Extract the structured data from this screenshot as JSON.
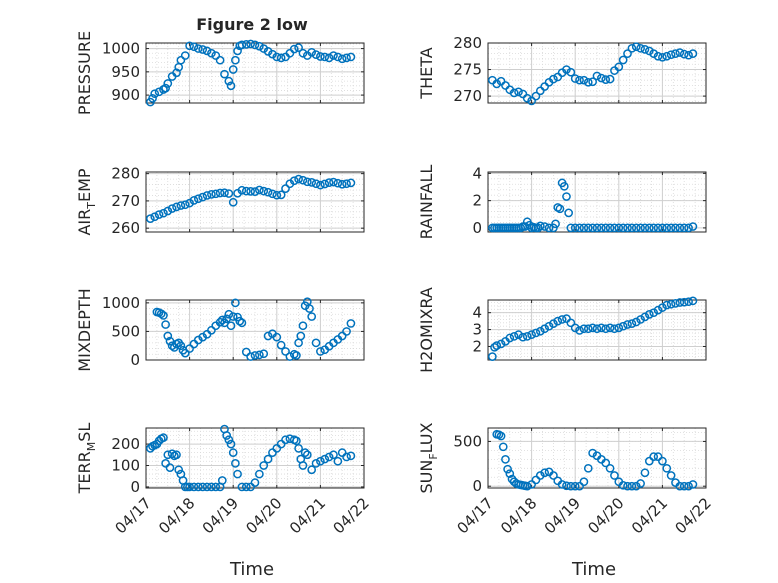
{
  "figure": {
    "title": "Figure 2 low"
  },
  "style": {
    "marker_color": "#0072BD",
    "grid_color": "#d9d9d9",
    "axis_color": "#262626"
  },
  "chart_data": [
    {
      "type": "scatter",
      "id": "pressure",
      "title": "Figure 2 low",
      "ylabel": "PRESSURE",
      "xlabel": "",
      "ylim": [
        883,
        1012
      ],
      "yticks": [
        900,
        950,
        1000
      ],
      "ytick_labels": [
        "900",
        "950",
        "1000"
      ],
      "xlim": [
        0,
        5
      ],
      "grid": true,
      "x": [
        0.1,
        0.15,
        0.2,
        0.3,
        0.4,
        0.45,
        0.5,
        0.6,
        0.7,
        0.75,
        0.8,
        0.9,
        1.0,
        1.1,
        1.2,
        1.3,
        1.4,
        1.5,
        1.6,
        1.7,
        1.8,
        1.9,
        1.95,
        2.0,
        2.05,
        2.1,
        2.15,
        2.2,
        2.3,
        2.4,
        2.5,
        2.6,
        2.7,
        2.8,
        2.9,
        3.0,
        3.1,
        3.2,
        3.3,
        3.4,
        3.5,
        3.6,
        3.7,
        3.8,
        3.9,
        4.0,
        4.1,
        4.2,
        4.3,
        4.4,
        4.5,
        4.6,
        4.7
      ],
      "y": [
        885,
        893,
        903,
        907,
        912,
        915,
        925,
        940,
        948,
        960,
        975,
        985,
        1006,
        1004,
        1000,
        998,
        995,
        990,
        985,
        975,
        945,
        930,
        920,
        955,
        975,
        995,
        1006,
        1008,
        1009,
        1010,
        1008,
        1005,
        1000,
        994,
        988,
        982,
        980,
        982,
        990,
        999,
        1002,
        990,
        985,
        992,
        987,
        983,
        982,
        980,
        985,
        982,
        978,
        980,
        982
      ]
    },
    {
      "type": "scatter",
      "id": "theta",
      "ylabel": "THETA",
      "ylim": [
        268.7,
        280
      ],
      "yticks": [
        270,
        275,
        280
      ],
      "ytick_labels": [
        "270",
        "275",
        "280"
      ],
      "xlim": [
        0,
        5
      ],
      "grid": true,
      "x": [
        0.1,
        0.2,
        0.3,
        0.4,
        0.5,
        0.6,
        0.7,
        0.8,
        0.9,
        1.0,
        1.1,
        1.2,
        1.3,
        1.4,
        1.5,
        1.6,
        1.7,
        1.8,
        1.9,
        2.0,
        2.1,
        2.2,
        2.3,
        2.4,
        2.5,
        2.6,
        2.7,
        2.8,
        2.9,
        3.0,
        3.1,
        3.2,
        3.3,
        3.4,
        3.5,
        3.6,
        3.7,
        3.8,
        3.9,
        4.0,
        4.1,
        4.2,
        4.3,
        4.4,
        4.5,
        4.6,
        4.7
      ],
      "y": [
        273,
        272.3,
        272.8,
        272,
        271.2,
        270.6,
        270.8,
        270.4,
        269.6,
        269.1,
        270,
        271,
        271.8,
        272.6,
        273.2,
        273.6,
        274.4,
        275,
        274.5,
        273.3,
        273,
        273,
        272.6,
        272.7,
        273.8,
        273.4,
        273.1,
        273.2,
        274.8,
        275.5,
        276.8,
        278,
        279,
        279.3,
        279,
        278.8,
        278.5,
        278,
        277.5,
        277.3,
        277.5,
        277.8,
        278,
        278.2,
        277.9,
        277.7,
        278
      ]
    },
    {
      "type": "scatter",
      "id": "air_temp",
      "ylabel": "AIR_TEMP",
      "ylabel_main": "AIR",
      "ylabel_sub": "T",
      "ylabel_rest": "EMP",
      "ylim": [
        258.6,
        280.6
      ],
      "yticks": [
        260,
        270,
        280
      ],
      "ytick_labels": [
        "260",
        "270",
        "280"
      ],
      "xlim": [
        0,
        5
      ],
      "grid": true,
      "x": [
        0.1,
        0.2,
        0.3,
        0.4,
        0.5,
        0.6,
        0.7,
        0.8,
        0.9,
        1.0,
        1.1,
        1.2,
        1.3,
        1.4,
        1.5,
        1.6,
        1.7,
        1.8,
        1.9,
        2.0,
        2.1,
        2.2,
        2.3,
        2.4,
        2.5,
        2.6,
        2.7,
        2.8,
        2.9,
        3.0,
        3.1,
        3.2,
        3.3,
        3.4,
        3.5,
        3.6,
        3.7,
        3.8,
        3.9,
        4.0,
        4.1,
        4.2,
        4.3,
        4.4,
        4.5,
        4.6,
        4.7
      ],
      "y": [
        263.5,
        264.2,
        265,
        265.5,
        266.3,
        267.2,
        267.8,
        268.3,
        268.6,
        269.2,
        270.2,
        270.8,
        271.4,
        272,
        272.4,
        272.6,
        272.9,
        273,
        272.7,
        269.5,
        272.8,
        273.9,
        273.6,
        273.5,
        273.4,
        274,
        273.6,
        273.2,
        272.6,
        272.1,
        272.2,
        274.5,
        276.3,
        277.4,
        278,
        277.6,
        277,
        276.8,
        276.3,
        275.8,
        276.2,
        276.7,
        276.9,
        276.5,
        276.1,
        276.3,
        276.6
      ]
    },
    {
      "type": "scatter",
      "id": "rainfall",
      "ylabel": "RAINFALL",
      "ylim": [
        -0.3,
        4.1
      ],
      "yticks": [
        0,
        2,
        4
      ],
      "ytick_labels": [
        "0",
        "2",
        "4"
      ],
      "xlim": [
        0,
        5
      ],
      "grid": true,
      "x": [
        0.1,
        0.15,
        0.2,
        0.25,
        0.3,
        0.35,
        0.4,
        0.45,
        0.5,
        0.55,
        0.6,
        0.65,
        0.7,
        0.75,
        0.8,
        0.85,
        0.9,
        0.95,
        1.0,
        1.05,
        1.1,
        1.15,
        1.2,
        1.3,
        1.4,
        1.5,
        1.55,
        1.6,
        1.65,
        1.7,
        1.75,
        1.8,
        1.85,
        1.9,
        2.0,
        2.1,
        2.2,
        2.3,
        2.4,
        2.5,
        2.6,
        2.7,
        2.8,
        2.9,
        3.0,
        3.1,
        3.2,
        3.3,
        3.4,
        3.5,
        3.6,
        3.7,
        3.8,
        3.9,
        4.0,
        4.1,
        4.2,
        4.3,
        4.4,
        4.5,
        4.6,
        4.7
      ],
      "y": [
        0,
        0,
        0,
        0,
        0,
        0,
        0,
        0,
        0,
        0,
        0,
        0,
        0,
        0,
        0.1,
        0.1,
        0.45,
        0.2,
        0,
        0.05,
        0,
        0,
        0.15,
        0.1,
        0,
        0,
        0.3,
        1.5,
        1.4,
        3.3,
        3.05,
        2.3,
        1.1,
        0,
        0,
        0,
        0,
        0,
        0,
        0,
        0,
        0,
        0,
        0,
        0,
        0,
        0,
        0,
        0,
        0,
        0,
        0,
        0,
        0,
        0,
        0,
        0,
        0,
        0,
        0,
        0,
        0.1
      ]
    },
    {
      "type": "scatter",
      "id": "mixdepth",
      "ylabel": "MIXDEPTH",
      "ylim": [
        0,
        1050
      ],
      "yticks": [
        0,
        500,
        1000
      ],
      "ytick_labels": [
        "0",
        "500",
        "1000"
      ],
      "xlim": [
        0,
        5
      ],
      "grid": true,
      "x": [
        0.25,
        0.3,
        0.35,
        0.4,
        0.45,
        0.5,
        0.55,
        0.6,
        0.65,
        0.7,
        0.75,
        0.8,
        0.85,
        0.9,
        1.0,
        1.1,
        1.2,
        1.3,
        1.4,
        1.5,
        1.6,
        1.7,
        1.75,
        1.8,
        1.85,
        1.9,
        1.95,
        2.0,
        2.05,
        2.1,
        2.15,
        2.2,
        2.3,
        2.4,
        2.5,
        2.6,
        2.7,
        2.8,
        2.9,
        3.0,
        3.1,
        3.2,
        3.3,
        3.4,
        3.45,
        3.5,
        3.55,
        3.6,
        3.65,
        3.7,
        3.75,
        3.8,
        3.9,
        4.0,
        4.1,
        4.2,
        4.3,
        4.4,
        4.5,
        4.6,
        4.7
      ],
      "y": [
        840,
        830,
        810,
        780,
        620,
        420,
        330,
        250,
        220,
        280,
        300,
        250,
        170,
        120,
        200,
        280,
        350,
        400,
        450,
        520,
        600,
        660,
        700,
        650,
        720,
        800,
        600,
        760,
        1000,
        750,
        680,
        650,
        140,
        60,
        80,
        90,
        110,
        420,
        460,
        400,
        260,
        150,
        60,
        100,
        80,
        300,
        420,
        600,
        950,
        1020,
        900,
        760,
        300,
        150,
        180,
        240,
        300,
        360,
        420,
        500,
        640
      ]
    },
    {
      "type": "scatter",
      "id": "h2omixra",
      "ylabel": "H2OMIXRA",
      "ylim": [
        1.2,
        4.75
      ],
      "yticks": [
        2,
        3,
        4
      ],
      "ytick_labels": [
        "2",
        "3",
        "4"
      ],
      "xlim": [
        0,
        5
      ],
      "grid": true,
      "x": [
        0.1,
        0.15,
        0.2,
        0.3,
        0.4,
        0.5,
        0.6,
        0.7,
        0.8,
        0.9,
        1.0,
        1.1,
        1.2,
        1.3,
        1.4,
        1.5,
        1.6,
        1.7,
        1.8,
        1.9,
        2.0,
        2.1,
        2.2,
        2.3,
        2.4,
        2.5,
        2.6,
        2.7,
        2.8,
        2.9,
        3.0,
        3.1,
        3.2,
        3.3,
        3.4,
        3.5,
        3.6,
        3.7,
        3.8,
        3.9,
        4.0,
        4.1,
        4.2,
        4.3,
        4.4,
        4.5,
        4.6,
        4.7
      ],
      "y": [
        1.4,
        1.95,
        2.05,
        2.15,
        2.3,
        2.5,
        2.6,
        2.7,
        2.55,
        2.6,
        2.7,
        2.8,
        2.9,
        3.05,
        3.2,
        3.35,
        3.5,
        3.6,
        3.65,
        3.4,
        3.1,
        2.95,
        3.05,
        3.05,
        3.1,
        3.05,
        3.1,
        3.05,
        3.1,
        3.05,
        3.1,
        3.2,
        3.3,
        3.35,
        3.45,
        3.6,
        3.75,
        3.9,
        4.0,
        4.15,
        4.3,
        4.45,
        4.5,
        4.55,
        4.6,
        4.62,
        4.65,
        4.7
      ]
    },
    {
      "type": "scatter",
      "id": "terr_msl",
      "ylabel": "TERR_MSL",
      "ylabel_main": "TERR",
      "ylabel_sub": "M",
      "ylabel_rest": "SL",
      "ylim": [
        -5,
        275
      ],
      "yticks": [
        0,
        100,
        200
      ],
      "ytick_labels": [
        "0",
        "100",
        "200"
      ],
      "xlim": [
        0,
        5
      ],
      "grid": true,
      "x": [
        0.1,
        0.15,
        0.2,
        0.25,
        0.3,
        0.35,
        0.4,
        0.45,
        0.5,
        0.55,
        0.6,
        0.65,
        0.7,
        0.75,
        0.8,
        0.85,
        0.9,
        0.95,
        1.0,
        1.1,
        1.2,
        1.3,
        1.4,
        1.5,
        1.6,
        1.7,
        1.75,
        1.8,
        1.85,
        1.9,
        1.95,
        2.0,
        2.05,
        2.1,
        2.2,
        2.3,
        2.4,
        2.5,
        2.6,
        2.7,
        2.8,
        2.9,
        3.0,
        3.1,
        3.2,
        3.3,
        3.4,
        3.45,
        3.5,
        3.55,
        3.6,
        3.65,
        3.7,
        3.8,
        3.9,
        4.0,
        4.1,
        4.2,
        4.3,
        4.4,
        4.5,
        4.6,
        4.7
      ],
      "y": [
        180,
        190,
        195,
        200,
        215,
        225,
        230,
        110,
        150,
        90,
        155,
        145,
        150,
        80,
        60,
        30,
        0,
        0,
        0,
        0,
        0,
        0,
        0,
        0,
        0,
        0,
        30,
        270,
        240,
        220,
        200,
        160,
        110,
        60,
        0,
        0,
        0,
        20,
        60,
        100,
        130,
        160,
        180,
        200,
        220,
        225,
        220,
        215,
        180,
        130,
        100,
        160,
        150,
        80,
        110,
        120,
        130,
        140,
        150,
        120,
        160,
        140,
        145
      ]
    },
    {
      "type": "scatter",
      "id": "sun_flux",
      "ylabel": "SUN_FLUX",
      "ylabel_main": "SUN",
      "ylabel_sub": "F",
      "ylabel_rest": "LUX",
      "ylim": [
        -20,
        650
      ],
      "yticks": [
        0,
        500
      ],
      "ytick_labels": [
        "0",
        "500"
      ],
      "xlim": [
        0,
        5
      ],
      "grid": true,
      "x": [
        0.2,
        0.25,
        0.3,
        0.35,
        0.4,
        0.45,
        0.5,
        0.55,
        0.6,
        0.65,
        0.7,
        0.75,
        0.8,
        0.85,
        0.9,
        1.0,
        1.1,
        1.2,
        1.3,
        1.4,
        1.5,
        1.6,
        1.7,
        1.8,
        1.9,
        2.0,
        2.1,
        2.2,
        2.3,
        2.4,
        2.5,
        2.6,
        2.7,
        2.8,
        2.9,
        3.0,
        3.1,
        3.2,
        3.3,
        3.4,
        3.5,
        3.6,
        3.7,
        3.8,
        3.9,
        4.0,
        4.1,
        4.2,
        4.3,
        4.4,
        4.5,
        4.6,
        4.7
      ],
      "y": [
        580,
        575,
        560,
        440,
        300,
        190,
        140,
        80,
        50,
        30,
        20,
        15,
        10,
        5,
        0,
        20,
        70,
        120,
        150,
        160,
        120,
        60,
        20,
        5,
        0,
        0,
        0,
        50,
        200,
        370,
        340,
        300,
        260,
        200,
        120,
        50,
        10,
        0,
        0,
        0,
        30,
        150,
        280,
        330,
        330,
        280,
        200,
        120,
        40,
        0,
        0,
        0,
        20
      ]
    }
  ],
  "x_axis": {
    "label": "Time",
    "tick_labels": [
      "04/17",
      "04/18",
      "04/19",
      "04/20",
      "04/21",
      "04/22"
    ],
    "tick_values": [
      0,
      1,
      2,
      3,
      4,
      5
    ]
  }
}
